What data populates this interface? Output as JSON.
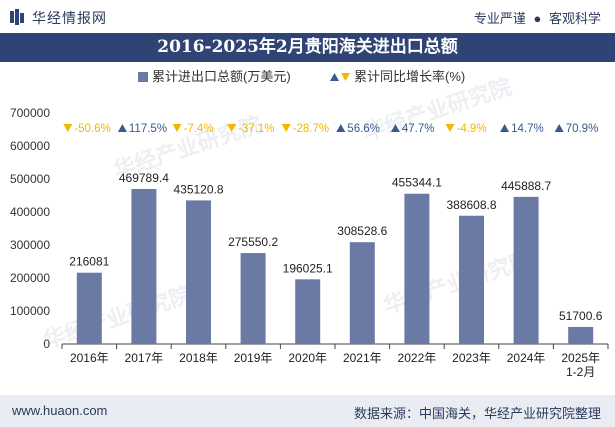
{
  "header": {
    "brand": "华经情报网",
    "tagline_left": "专业严谨",
    "tagline_sep": "●",
    "tagline_right": "客观科学"
  },
  "watermark": "华经产业研究院",
  "chart_data": {
    "type": "bar",
    "title": "2016-2025年2月贵阳海关进出口总额",
    "categories": [
      "2016年",
      "2017年",
      "2018年",
      "2019年",
      "2020年",
      "2021年",
      "2022年",
      "2023年",
      "2024年",
      "2025年\n1-2月"
    ],
    "series": [
      {
        "name": "累计进出口总额(万美元)",
        "values": [
          216081,
          469789.4,
          435120.8,
          275550.2,
          196025.1,
          308528.6,
          455344.1,
          388608.8,
          445888.7,
          51700.6
        ],
        "labels": [
          "216081",
          "469789.4",
          "435120.8",
          "275550.2",
          "196025.1",
          "308528.6",
          "455344.1",
          "388608.8",
          "445888.7",
          "51700.6"
        ],
        "color": "#6b7aa5"
      },
      {
        "name": "累计同比增长率(%)",
        "values": [
          -50.6,
          117.5,
          -7.4,
          -37.1,
          -28.7,
          56.6,
          47.7,
          -4.9,
          14.7,
          70.9
        ],
        "labels": [
          "-50.6%",
          "117.5%",
          "-7.4%",
          "-37.1%",
          "-28.7%",
          "56.6%",
          "47.7%",
          "-4.9%",
          "14.7%",
          "70.9%"
        ],
        "up_color": "#3a5a8c",
        "down_color": "#f2b800"
      }
    ],
    "yticks": [
      "0",
      "100000",
      "200000",
      "300000",
      "400000",
      "500000",
      "600000",
      "700000"
    ],
    "ylim": [
      0,
      700000
    ],
    "grid": false,
    "legend_position": "top-center"
  },
  "footer": {
    "website": "www.huaon.com",
    "source": "数据来源：中国海关，华经产业研究院整理"
  }
}
